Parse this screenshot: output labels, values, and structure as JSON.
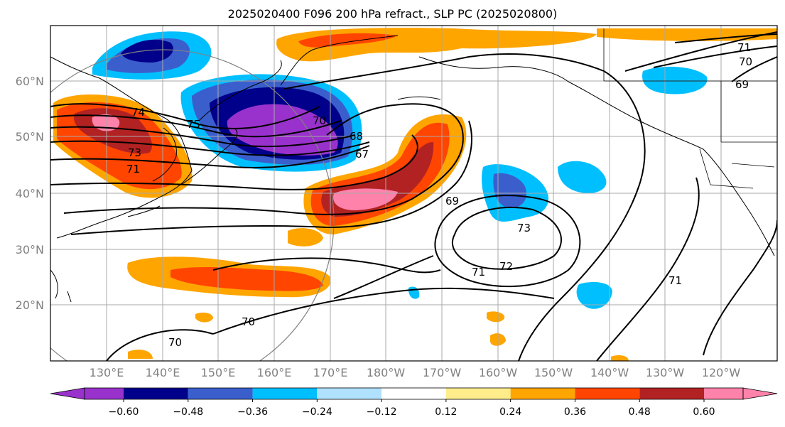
{
  "title": "2025020400 F096 200 hPa refract., SLP PC (2025020800)",
  "latitude_labels": [
    "60°N",
    "50°N",
    "40°N",
    "30°N",
    "20°N"
  ],
  "longitude_labels": [
    "130°E",
    "140°E",
    "150°E",
    "160°E",
    "170°E",
    "180°W",
    "170°W",
    "160°W",
    "150°W",
    "140°W",
    "130°W",
    "120°W"
  ],
  "contour_labels": [
    "75",
    "74",
    "73",
    "71",
    "70",
    "68",
    "67",
    "69",
    "73",
    "72",
    "71",
    "71",
    "70",
    "70",
    "69",
    "70",
    "71"
  ],
  "colorbar": {
    "ticks": [
      "−0.60",
      "−0.48",
      "−0.36",
      "−0.24",
      "−0.12",
      "0.12",
      "0.24",
      "0.36",
      "0.48",
      "0.60"
    ],
    "colors": [
      "#9932cc",
      "#00008b",
      "#3a5fcd",
      "#00bfff",
      "#b0e2ff",
      "#ffffff",
      "#ffec8b",
      "#ffa500",
      "#ff4500",
      "#b22222",
      "#ff82ab"
    ]
  },
  "colors": {
    "contour": "#000000",
    "coastline": "#000000",
    "grid": "#a9a9a9"
  }
}
